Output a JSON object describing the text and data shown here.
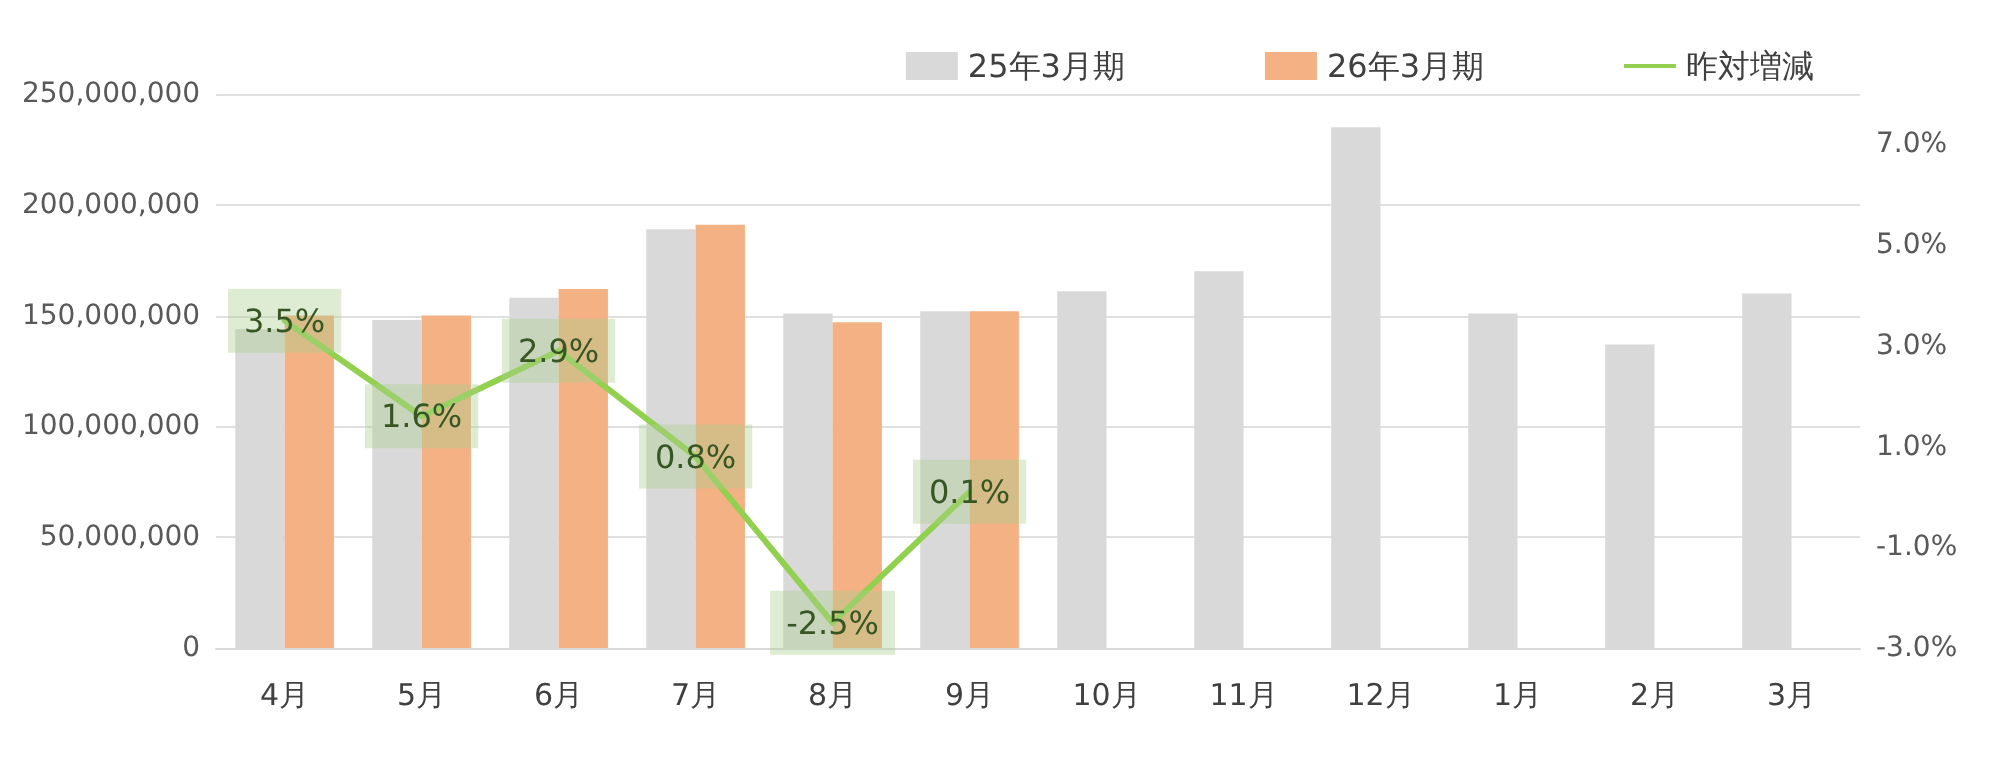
{
  "chart_data": {
    "type": "bar",
    "categories": [
      "4月",
      "5月",
      "6月",
      "7月",
      "8月",
      "9月",
      "10月",
      "11月",
      "12月",
      "1月",
      "2月",
      "3月"
    ],
    "series": [
      {
        "name": "25年3月期",
        "color": "#d9d9d9",
        "values": [
          144000000,
          148000000,
          158000000,
          189000000,
          151000000,
          152000000,
          161000000,
          170000000,
          235000000,
          151000000,
          137000000,
          160000000
        ]
      },
      {
        "name": "26年3月期",
        "color": "#f4b183",
        "values": [
          150000000,
          150000000,
          162000000,
          191000000,
          147000000,
          152000000,
          null,
          null,
          null,
          null,
          null,
          null
        ]
      },
      {
        "name": "昨対増減",
        "type": "line",
        "axis": "y2",
        "color": "#92d050",
        "values": [
          3.5,
          1.6,
          2.9,
          0.8,
          -2.5,
          0.1,
          null,
          null,
          null,
          null,
          null,
          null
        ],
        "value_labels": [
          "3.5%",
          "1.6%",
          "2.9%",
          "0.8%",
          "-2.5%",
          "0.1%",
          null,
          null,
          null,
          null,
          null,
          null
        ]
      }
    ],
    "ylim": [
      0,
      250000000
    ],
    "yticks": [
      {
        "value": 0,
        "label": "0"
      },
      {
        "value": 50000000,
        "label": "50,000,000"
      },
      {
        "value": 100000000,
        "label": "100,000,000"
      },
      {
        "value": 150000000,
        "label": "150,000,000"
      },
      {
        "value": 200000000,
        "label": "200,000,000"
      },
      {
        "value": 250000000,
        "label": "250,000,000"
      }
    ],
    "y2lim": [
      -3,
      8
    ],
    "y2ticks": [
      {
        "value": -3,
        "label": "-3.0%"
      },
      {
        "value": -1,
        "label": "-1.0%"
      },
      {
        "value": 1,
        "label": "1.0%"
      },
      {
        "value": 3,
        "label": "3.0%"
      },
      {
        "value": 5,
        "label": "5.0%"
      },
      {
        "value": 7,
        "label": "7.0%"
      }
    ],
    "grid": "y",
    "legend": "top right",
    "marker": "none",
    "line_style": "solid"
  }
}
